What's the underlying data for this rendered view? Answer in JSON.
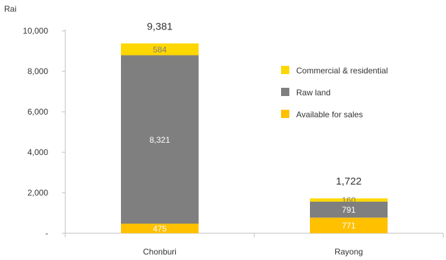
{
  "chart_data": {
    "type": "bar",
    "stacked": true,
    "y_unit_label": "Rai",
    "categories": [
      "Chonburi",
      "Rayong"
    ],
    "series": [
      {
        "name": "Available for sales",
        "values": [
          475,
          771
        ],
        "color": "#FFC000",
        "label_color": "#ffffff"
      },
      {
        "name": "Raw land",
        "values": [
          8321,
          791
        ],
        "color": "#7F7F7F",
        "label_color": "#ffffff"
      },
      {
        "name": "Commercial & residential",
        "values": [
          584,
          160
        ],
        "color": "#FFD700",
        "label_color": "#7F7F7F"
      }
    ],
    "totals": [
      "9,381",
      "1,722"
    ],
    "ylim": [
      0,
      10000
    ],
    "yticks": [
      {
        "value": 0,
        "label": "-"
      },
      {
        "value": 2000,
        "label": "2,000"
      },
      {
        "value": 4000,
        "label": "4,000"
      },
      {
        "value": 6000,
        "label": "6,000"
      },
      {
        "value": 8000,
        "label": "8,000"
      },
      {
        "value": 10000,
        "label": "10,000"
      }
    ],
    "legend_order": [
      "Commercial & residential",
      "Raw land",
      "Available for sales"
    ],
    "legend_position": "right",
    "grid": false
  }
}
